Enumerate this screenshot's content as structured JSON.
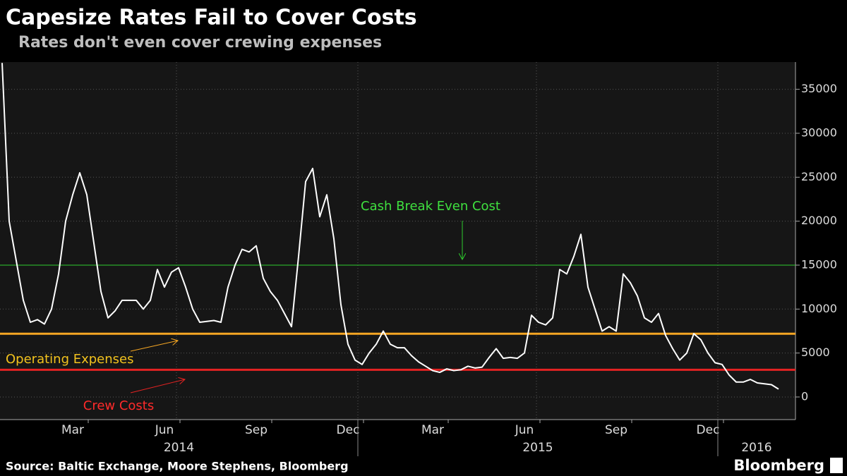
{
  "chart_data": {
    "type": "line",
    "title": "Capesize Rates Fail to Cover Costs",
    "subtitle": "Rates don't even cover crewing expenses",
    "source": "Source: Baltic Exchange, Moore Stephens, Bloomberg",
    "brand": "Bloomberg",
    "color": "#ffffff",
    "categories": [
      null,
      null,
      null,
      null,
      null,
      null,
      null,
      null,
      null,
      null,
      "Mar",
      null,
      null,
      null,
      null,
      null,
      null,
      null,
      null,
      null,
      null,
      null,
      null,
      "Jun",
      null,
      null,
      null,
      null,
      null,
      null,
      null,
      null,
      null,
      null,
      null,
      null,
      "Sep",
      null,
      null,
      null,
      null,
      null,
      null,
      null,
      null,
      null,
      null,
      null,
      null,
      "Dec",
      null,
      null,
      null,
      null,
      null,
      null,
      null,
      null,
      null,
      null,
      null,
      "Mar",
      null,
      null,
      null,
      null,
      null,
      null,
      null,
      null,
      null,
      null,
      null,
      null,
      "Jun",
      null,
      null,
      null,
      null,
      null,
      null,
      null,
      null,
      null,
      null,
      null,
      null,
      "Sep",
      null,
      null,
      null,
      null,
      null,
      null,
      null,
      null,
      null,
      null,
      null,
      null,
      "Dec",
      null,
      null,
      null,
      null,
      null,
      null,
      null,
      null,
      null,
      null
    ],
    "values": [
      38000,
      20000,
      15500,
      11000,
      8500,
      8800,
      8300,
      10000,
      14000,
      20000,
      23000,
      25500,
      23000,
      17500,
      12000,
      9000,
      9800,
      11000,
      11000,
      11000,
      10000,
      11000,
      14500,
      12500,
      14200,
      14700,
      12500,
      10000,
      8500,
      8600,
      8700,
      8500,
      12500,
      15000,
      16800,
      16500,
      17200,
      13500,
      12000,
      11000,
      9500,
      8000,
      16000,
      24500,
      26000,
      20500,
      23000,
      18000,
      10500,
      6000,
      4200,
      3700,
      5000,
      6000,
      7500,
      6000,
      5600,
      5600,
      4700,
      4000,
      3500,
      3000,
      2800,
      3200,
      3000,
      3100,
      3500,
      3300,
      3400,
      4500,
      5500,
      4400,
      4500,
      4400,
      5000,
      9300,
      8500,
      8200,
      9000,
      14500,
      14000,
      16000,
      18500,
      12500,
      10000,
      7500,
      8000,
      7500,
      14000,
      13000,
      11500,
      9000,
      8500,
      9500,
      7000,
      5500,
      4200,
      5000,
      7200,
      6500,
      5000,
      3900,
      3700,
      2500,
      1700,
      1700,
      2000,
      1600,
      1500,
      1400,
      900
    ],
    "years": [
      "2014",
      "2015",
      "2016"
    ],
    "ylim": [
      -2570,
      38100
    ],
    "yticks": [
      0,
      5000,
      10000,
      15000,
      20000,
      25000,
      30000,
      35000
    ],
    "grid": true,
    "reference_lines": [
      {
        "label": "Cash Break Even Cost",
        "value": 15000,
        "color": "#2ecc2e",
        "label_color": "#3fe03f"
      },
      {
        "label": "Operating Expenses",
        "value": 7200,
        "color": "#f5a623",
        "label_color": "#f2c21e"
      },
      {
        "label": "Crew Costs",
        "value": 3100,
        "color": "#e52222",
        "label_color": "#ff2a2a"
      }
    ]
  }
}
